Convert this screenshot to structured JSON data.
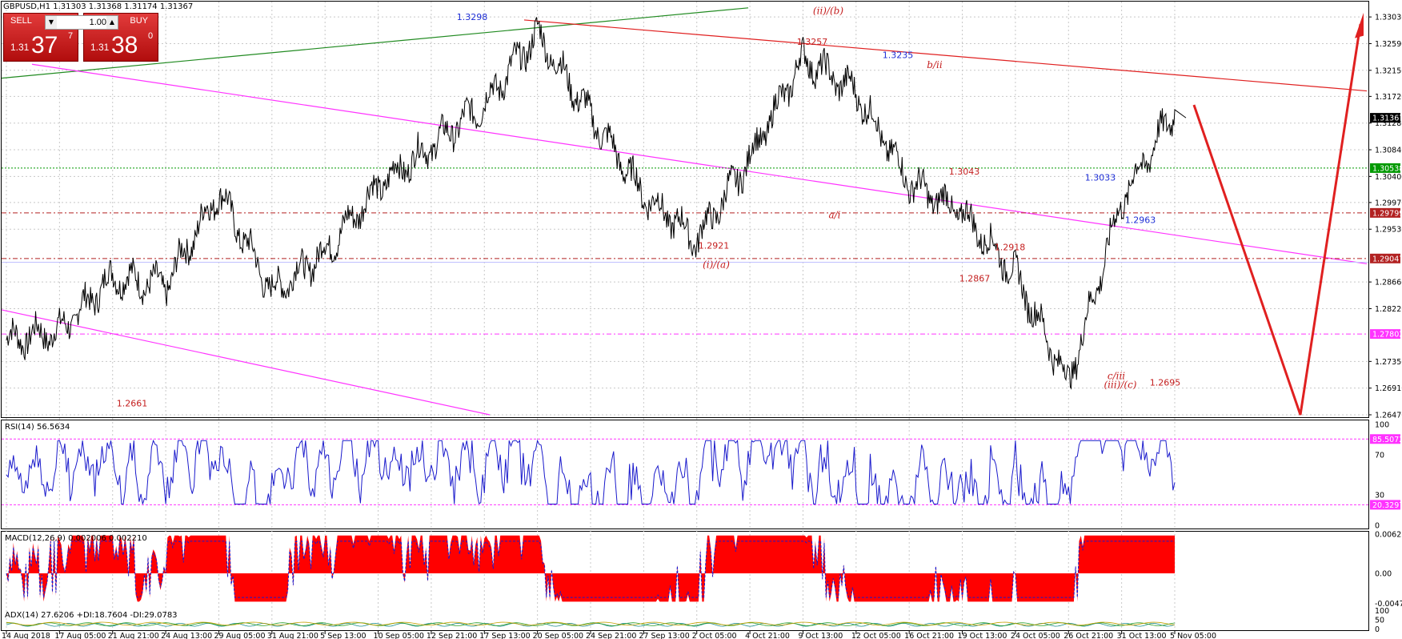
{
  "header": {
    "symbol_line": "GBPUSD,H1  1.31303 1.31368 1.31174 1.31367"
  },
  "trade_panel": {
    "sell_label": "SELL",
    "buy_label": "BUY",
    "lot_value": "1.00",
    "sell_price_small": "1.31",
    "sell_price_big": "37",
    "sell_price_sup": "7",
    "buy_price_small": "1.31",
    "buy_price_big": "38",
    "buy_price_sup": "0",
    "spin_down_icon": "triangle-down",
    "spin_up_icon": "triangle-up"
  },
  "price_axis": {
    "ticks": [
      "1.33030",
      "1.32590",
      "1.32150",
      "1.31720",
      "1.31280",
      "1.30840",
      "1.30400",
      "1.29970",
      "1.29530",
      "1.28660",
      "1.28220",
      "1.27350",
      "1.26910",
      "1.26470"
    ],
    "tags": [
      {
        "label": "1.31367",
        "value": 1.31367,
        "color": "#000000"
      },
      {
        "label": "1.30538",
        "value": 1.30538,
        "color": "#009900"
      },
      {
        "label": "1.29799",
        "value": 1.29799,
        "color": "#b22222"
      },
      {
        "label": "1.29047",
        "value": 1.29047,
        "color": "#b22222"
      },
      {
        "label": "1.27802",
        "value": 1.27802,
        "color": "#ff33ff"
      }
    ]
  },
  "time_axis": [
    "14 Aug 2018",
    "17 Aug 05:00",
    "21 Aug 21:00",
    "24 Aug 13:00",
    "29 Aug 05:00",
    "31 Aug 21:00",
    "5 Sep 13:00",
    "10 Sep 05:00",
    "12 Sep 21:00",
    "17 Sep 13:00",
    "20 Sep 05:00",
    "24 Sep 21:00",
    "27 Sep 13:00",
    "2 Oct 05:00",
    "4 Oct 21:00",
    "9 Oct 13:00",
    "12 Oct 05:00",
    "16 Oct 21:00",
    "19 Oct 13:00",
    "24 Oct 05:00",
    "26 Oct 21:00",
    "31 Oct 13:00",
    "5 Nov 05:00"
  ],
  "annotations": [
    {
      "text": "1.3298",
      "value": 1.3298,
      "color": "blue",
      "style": "plain"
    },
    {
      "text": "(ii)/(b)",
      "value": 1.3308,
      "color": "red",
      "style": "italic"
    },
    {
      "text": "1.3257",
      "value": 1.3257,
      "color": "red",
      "style": "plain"
    },
    {
      "text": "1.3235",
      "value": 1.3235,
      "color": "blue",
      "style": "plain"
    },
    {
      "text": "b/ii",
      "value": 1.3219,
      "color": "red",
      "style": "italic"
    },
    {
      "text": "1.3043",
      "value": 1.3043,
      "color": "red",
      "style": "plain"
    },
    {
      "text": "1.3033",
      "value": 1.3033,
      "color": "blue",
      "style": "plain"
    },
    {
      "text": "a/i",
      "value": 1.2971,
      "color": "red",
      "style": "italic"
    },
    {
      "text": "1.2918",
      "value": 1.2918,
      "color": "red",
      "style": "plain"
    },
    {
      "text": "1.2963",
      "value": 1.2963,
      "color": "blue",
      "style": "plain"
    },
    {
      "text": "1.2921",
      "value": 1.2921,
      "color": "red",
      "style": "plain"
    },
    {
      "text": "1.2867",
      "value": 1.2867,
      "color": "red",
      "style": "plain"
    },
    {
      "text": "(i)/(a)",
      "value": 1.2889,
      "color": "red",
      "style": "italic"
    },
    {
      "text": "c/iii",
      "value": 1.2706,
      "color": "red",
      "style": "italic"
    },
    {
      "text": "(iii)/(c)",
      "value": 1.2691,
      "color": "red",
      "style": "italic"
    },
    {
      "text": "1.2695",
      "value": 1.2695,
      "color": "red",
      "style": "plain"
    },
    {
      "text": "1.2661",
      "value": 1.2661,
      "color": "red",
      "style": "plain"
    }
  ],
  "rsi": {
    "title": "RSI(14) 56.5634",
    "levels": [
      "100",
      "70",
      "30",
      "0"
    ],
    "tags": [
      {
        "label": "85.5072",
        "value": 85.5072
      },
      {
        "label": "20.3297",
        "value": 20.3297
      }
    ]
  },
  "macd": {
    "title": "MACD(12,26,9) 0.002006 0.002210",
    "levels": [
      "0.006231",
      "0.00",
      "-0.004744"
    ]
  },
  "adx": {
    "title": "ADX(14) 27.6206 +DI:18.7604 -DI:29.0783",
    "levels": [
      "100",
      "50",
      "0"
    ]
  },
  "colors": {
    "price": "#000000",
    "rsi": "#1a1acc",
    "macd_hist": "#ff0000",
    "macd_signal": "#1a1acc",
    "channel_magenta": "#ff33ff",
    "green_line": "#228b22",
    "red_line": "#e02020"
  },
  "chart_data": {
    "type": "line",
    "title": "GBPUSD,H1",
    "x": [
      "14 Aug 2018",
      "17 Aug 05:00",
      "21 Aug 21:00",
      "24 Aug 13:00",
      "29 Aug 05:00",
      "31 Aug 21:00",
      "5 Sep 13:00",
      "10 Sep 05:00",
      "12 Sep 21:00",
      "17 Sep 13:00",
      "20 Sep 05:00",
      "24 Sep 21:00",
      "27 Sep 13:00",
      "2 Oct 05:00",
      "4 Oct 21:00",
      "9 Oct 13:00",
      "12 Oct 05:00",
      "16 Oct 21:00",
      "19 Oct 13:00",
      "24 Oct 05:00",
      "26 Oct 21:00",
      "31 Oct 13:00",
      "5 Nov 05:00"
    ],
    "ylim": [
      1.2647,
      1.3323
    ],
    "series": [
      {
        "values": [
          1.277,
          1.2785,
          1.2875,
          1.286,
          1.3015,
          1.285,
          1.2915,
          1.3025,
          1.309,
          1.316,
          1.3275,
          1.314,
          1.301,
          1.2935,
          1.307,
          1.3235,
          1.318,
          1.303,
          1.298,
          1.288,
          1.27,
          1.3,
          1.315
        ]
      }
    ],
    "horizontal_levels": [
      1.30538,
      1.29799,
      1.29047,
      1.27802
    ],
    "rsi_levels": [
      85.5072,
      20.3297
    ]
  }
}
